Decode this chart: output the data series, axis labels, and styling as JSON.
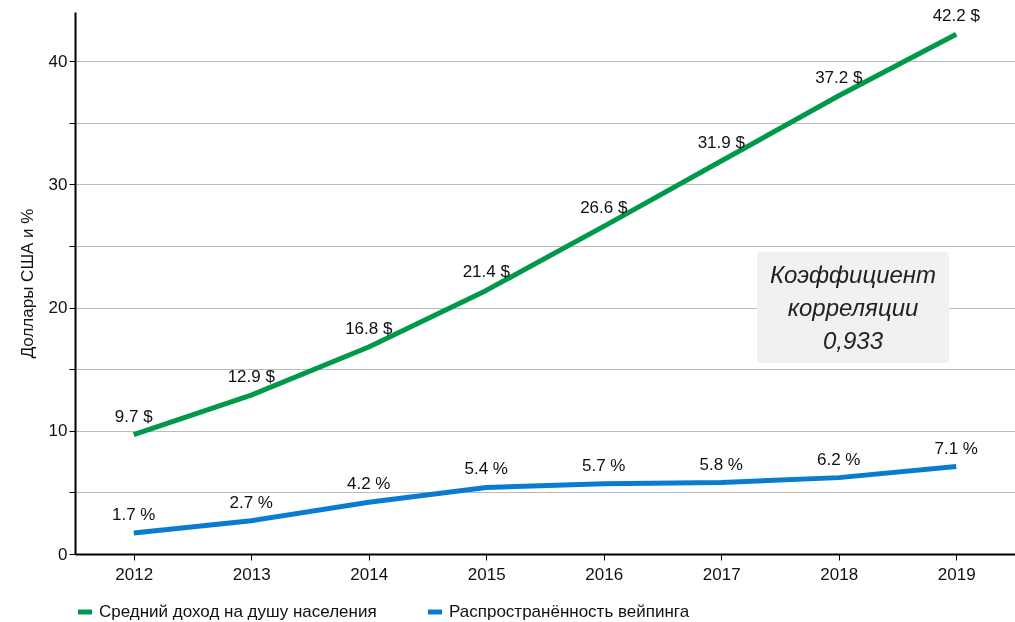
{
  "chart_data": {
    "type": "line",
    "ylabel": "Доллары США и %",
    "categories": [
      "2012",
      "2013",
      "2014",
      "2015",
      "2016",
      "2017",
      "2018",
      "2019"
    ],
    "series": [
      {
        "name": "Средний доход на душу населения",
        "color": "#00994a",
        "values": [
          9.7,
          12.9,
          16.8,
          21.4,
          26.6,
          31.9,
          37.2,
          42.2
        ],
        "value_labels": [
          "9.7 $",
          "12.9 $",
          "16.8 $",
          "21.4 $",
          "26.6 $",
          "31.9 $",
          "37.2 $",
          "42.2 $"
        ]
      },
      {
        "name": "Распространённость вейпинга",
        "color": "#0a7cd0",
        "values": [
          1.7,
          2.7,
          4.2,
          5.4,
          5.7,
          5.8,
          6.2,
          7.1
        ],
        "value_labels": [
          "1.7 %",
          "2.7 %",
          "4.2 %",
          "5.4 %",
          "5.7 %",
          "5.8 %",
          "6.2 %",
          "7.1 %"
        ]
      }
    ],
    "ylim": [
      0,
      44
    ],
    "yticks": [
      0,
      {
        "value": 5,
        "label": null
      },
      10,
      {
        "value": 15,
        "label": null
      },
      20,
      {
        "value": 25,
        "label": null
      },
      30,
      {
        "value": 35,
        "label": null
      },
      40
    ],
    "grid": "y",
    "legend": "bottom",
    "annotations": [
      "Коэффициент\nкорреляции\n0,933"
    ]
  }
}
